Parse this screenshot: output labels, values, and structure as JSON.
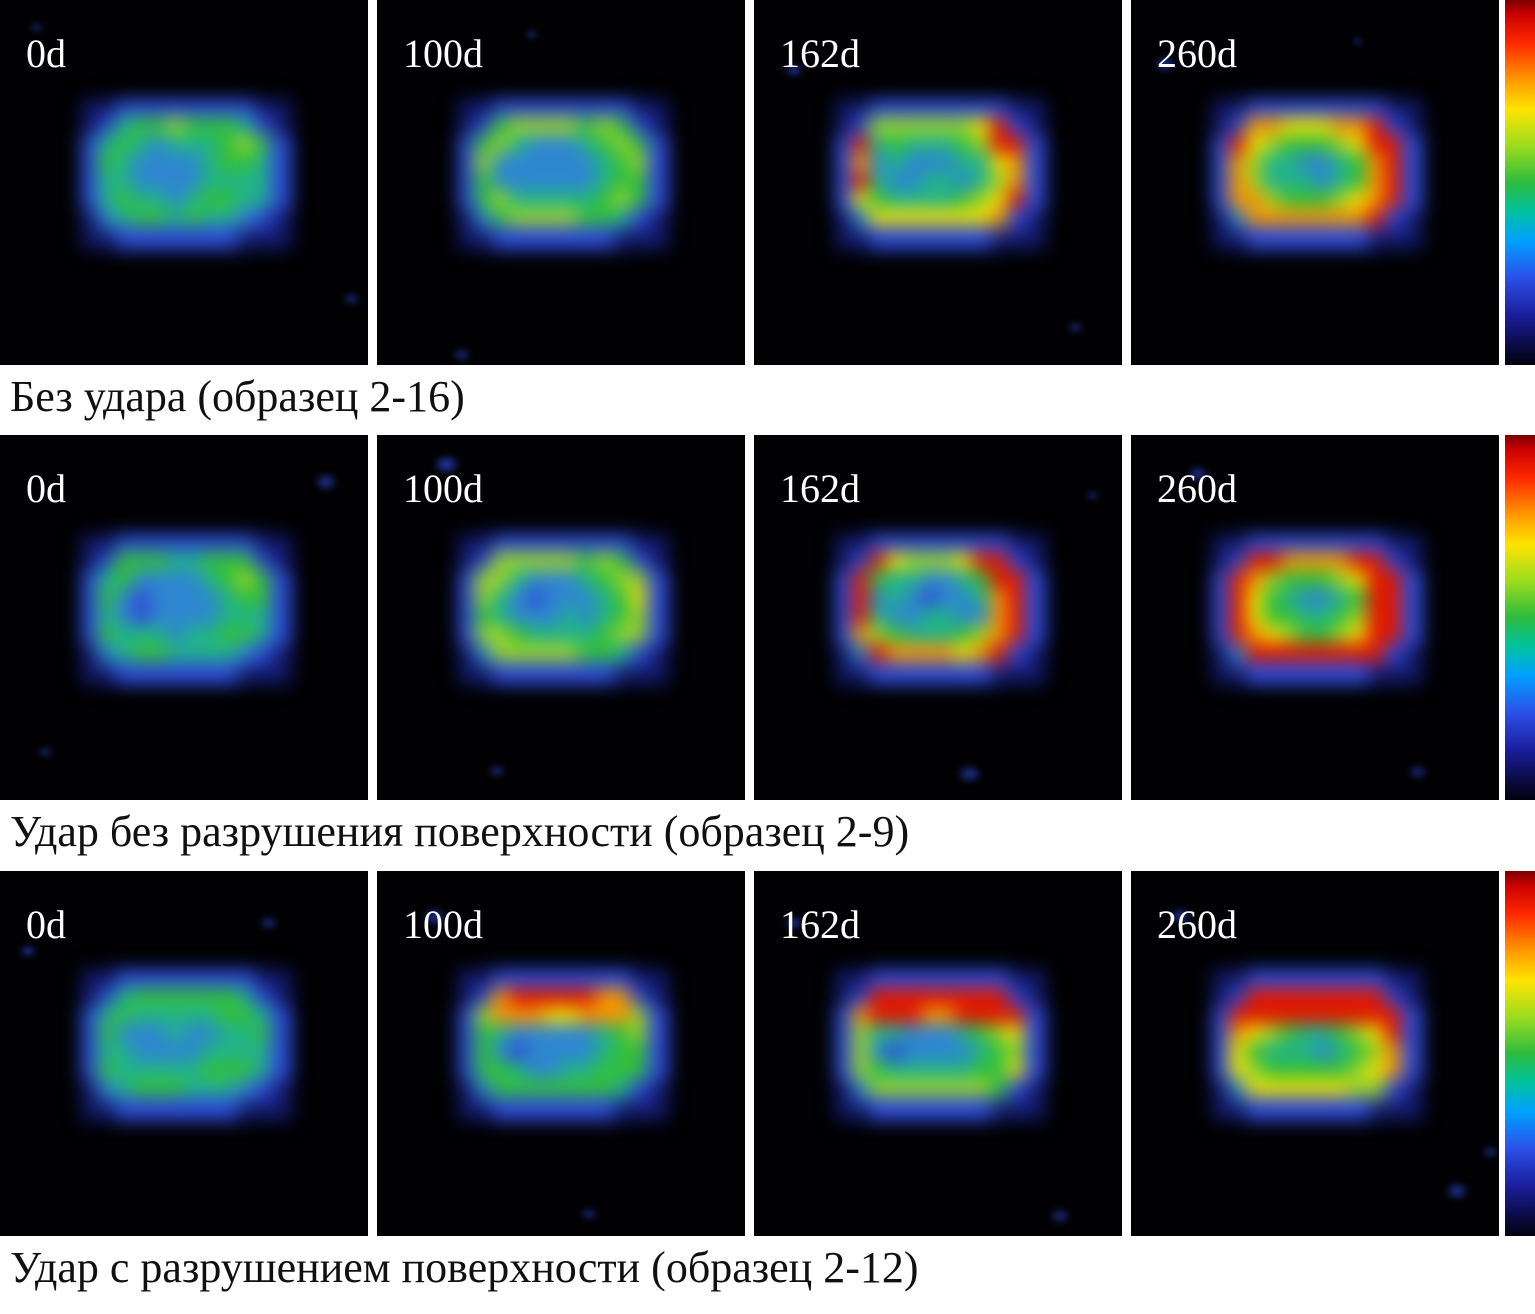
{
  "chart_data": {
    "type": "heatmap",
    "description_visible_text_only": true,
    "colormap_stops": [
      [
        0.0,
        "#000018"
      ],
      [
        0.1,
        "#1a2390"
      ],
      [
        0.2,
        "#2e4bd8"
      ],
      [
        0.3,
        "#2e86d0"
      ],
      [
        0.4,
        "#21b389"
      ],
      [
        0.5,
        "#33bf3a"
      ],
      [
        0.6,
        "#9ad426"
      ],
      [
        0.7,
        "#efe100"
      ],
      [
        0.8,
        "#f59500"
      ],
      [
        0.9,
        "#e01800"
      ],
      [
        1.0,
        "#900000"
      ]
    ],
    "colorbar": [
      [
        0,
        "#7a0000"
      ],
      [
        4,
        "#cc0000"
      ],
      [
        12,
        "#ff2a00"
      ],
      [
        22,
        "#ff9a00"
      ],
      [
        30,
        "#ffe400"
      ],
      [
        40,
        "#9bdc1e"
      ],
      [
        50,
        "#2dbc3e"
      ],
      [
        58,
        "#00c2a0"
      ],
      [
        66,
        "#00a0ff"
      ],
      [
        76,
        "#2b50e8"
      ],
      [
        86,
        "#1b1f9e"
      ],
      [
        95,
        "#0a0a40"
      ],
      [
        100,
        "#020210"
      ]
    ],
    "rows": [
      {
        "caption": "Без удара (образец 2-16)",
        "panels": [
          {
            "label": "0d",
            "grid": [
              "112222222211",
              "124556555421",
              "245434445652",
              "254333345542",
              "244333344442",
              "245443455442",
              "134554544321",
              "112222222111"
            ],
            "speckles": [
              [
                8,
                6,
                6,
                0.2
              ],
              [
                93,
                80,
                8,
                0.2
              ]
            ]
          },
          {
            "label": "100d",
            "grid": [
              "112222222211",
              "125666656521",
              "256433345652",
              "263333334562",
              "253333334552",
              "256444445652",
              "135666655421",
              "112222222111"
            ],
            "speckles": [
              [
                20,
                95,
                9,
                0.2
              ],
              [
                40,
                8,
                6,
                0.2
              ]
            ]
          },
          {
            "label": "162d",
            "grid": [
              "112222222211",
              "126666667921",
              "294544456992",
              "283433344782",
              "294334434682",
              "275444456792",
              "137777777821",
              "112222222111"
            ],
            "speckles": [
              [
                8,
                17,
                9,
                0.25
              ],
              [
                85,
                88,
                7,
                0.2
              ]
            ]
          },
          {
            "label": "260d",
            "grid": [
              "112222222211",
              "128877788921",
              "297655567992",
              "286443345892",
              "286444345892",
              "288655567892",
              "138888888921",
              "112222222111"
            ],
            "speckles": [
              [
                6,
                15,
                10,
                0.25
              ],
              [
                60,
                10,
                5,
                0.2
              ]
            ]
          }
        ]
      },
      {
        "caption": "Удар без разрушения поверхности (образец 2-9)",
        "panels": [
          {
            "label": "0d",
            "grid": [
              "112222222211",
              "125554455521",
              "245333345652",
              "253233334552",
              "243233334442",
              "254443445542",
              "134554444321",
              "112222222111"
            ],
            "speckles": [
              [
                85,
                10,
                11,
                0.25
              ],
              [
                10,
                85,
                7,
                0.2
              ]
            ]
          },
          {
            "label": "100d",
            "grid": [
              "112222222211",
              "126666656521",
              "266433345662",
              "264323334572",
              "254333434562",
              "266544445662",
              "136666655421",
              "112222222111"
            ],
            "speckles": [
              [
                15,
                5,
                12,
                0.3
              ],
              [
                30,
                90,
                8,
                0.2
              ]
            ]
          },
          {
            "label": "162d",
            "grid": [
              "112222222211",
              "129766679921",
              "295443345992",
              "293432334892",
              "294334433892",
              "286544456892",
              "139888878921",
              "112222222111"
            ],
            "speckles": [
              [
                55,
                90,
                11,
                0.25
              ],
              [
                90,
                15,
                6,
                0.2
              ]
            ]
          },
          {
            "label": "260d",
            "grid": [
              "112222222211",
              "129988889921",
              "298655567992",
              "297543345992",
              "297554456992",
              "298765567992",
              "139999999921",
              "112222222111"
            ],
            "speckles": [
              [
                15,
                8,
                10,
                0.25
              ],
              [
                75,
                90,
                9,
                0.2
              ]
            ]
          }
        ]
      },
      {
        "caption": "Удар с разрушением поверхности (образец 2-12)",
        "panels": [
          {
            "label": "0d",
            "grid": [
              "112222222211",
              "124555555421",
              "245444445542",
              "253334334452",
              "244333344442",
              "254444455542",
              "134555444321",
              "112222222111"
            ],
            "speckles": [
              [
                5,
                20,
                8,
                0.25
              ],
              [
                70,
                12,
                9,
                0.2
              ]
            ]
          },
          {
            "label": "100d",
            "grid": [
              "112222222211",
              "128999998821",
              "268887788862",
              "254333334562",
              "253233334552",
              "255433445552",
              "135555555421",
              "112222222111"
            ],
            "speckles": [
              [
                12,
                10,
                11,
                0.25
              ],
              [
                55,
                92,
                8,
                0.2
              ]
            ]
          },
          {
            "label": "162d",
            "grid": [
              "112222222211",
              "129999999921",
              "289998899992",
              "264433345672",
              "263233334562",
              "265444445572",
              "136666666521",
              "112222222111"
            ],
            "speckles": [
              [
                8,
                12,
                9,
                0.25
              ],
              [
                80,
                92,
                10,
                0.2
              ]
            ]
          },
          {
            "label": "260d",
            "grid": [
              "112222222211",
              "129999999921",
              "299999999992",
              "287654456792",
              "275444345682",
              "276555556782",
              "137777776621",
              "112222222111"
            ],
            "speckles": [
              [
                10,
                10,
                10,
                0.25
              ],
              [
                85,
                85,
                11,
                0.25
              ],
              [
                95,
                75,
                8,
                0.2
              ]
            ]
          }
        ]
      }
    ]
  }
}
